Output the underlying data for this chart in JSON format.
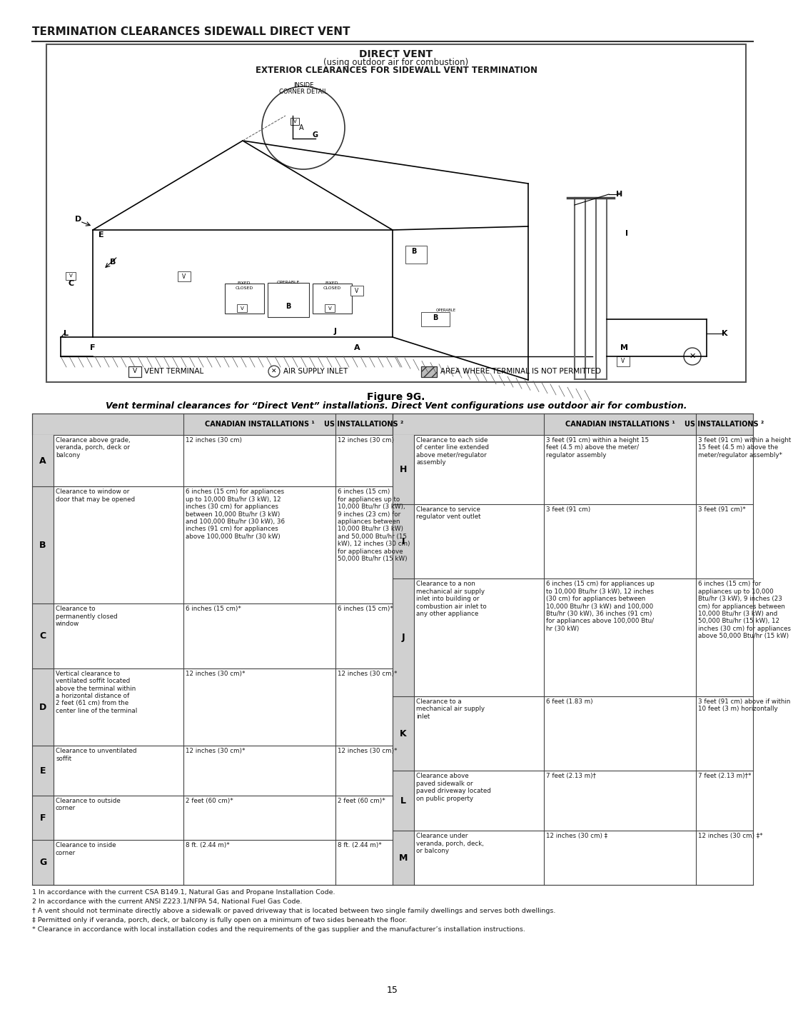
{
  "title": "TERMINATION CLEARANCES SIDEWALL DIRECT VENT",
  "figure_label": "Figure 9G.",
  "subtitle": "Vent terminal clearances for “Direct Vent” installations. Direct Vent configurations use outdoor air for combustion.",
  "diagram_title_line1": "DIRECT VENT",
  "diagram_title_line2": "(using outdoor air for combustion)",
  "diagram_title_line3": "EXTERIOR CLEARANCES FOR SIDEWALL VENT TERMINATION",
  "col_headers": [
    "CANADIAN INSTALLATIONS ¹",
    "US INSTALLATIONS ²",
    "CANADIAN INSTALLATIONS ¹",
    "US INSTALLATIONS ²"
  ],
  "rows_left": [
    {
      "letter": "A",
      "desc": "Clearance above grade,\nveranda, porch, deck or\nbalcony",
      "canada": "12 inches (30 cm)",
      "us": "12 inches (30 cm)"
    },
    {
      "letter": "B",
      "desc": "Clearance to window or\ndoor that may be opened",
      "canada": "6 inches (15 cm) for appliances\nup to 10,000 Btu/hr (3 kW), 12\ninches (30 cm) for appliances\nbetween 10,000 Btu/hr (3 kW)\nand 100,000 Btu/hr (30 kW), 36\ninches (91 cm) for appliances\nabove 100,000 Btu/hr (30 kW)",
      "us": "6 inches (15 cm)\nfor appliances up to\n10,000 Btu/hr (3 kW),\n9 inches (23 cm) for\nappliances between\n10,000 Btu/hr (3 kW)\nand 50,000 Btu/hr (15\nkW), 12 inches (30 cm)\nfor appliances above\n50,000 Btu/hr (15 kW)"
    },
    {
      "letter": "C",
      "desc": "Clearance to\npermanently closed\nwindow",
      "canada": "6 inches (15 cm)*",
      "us": "6 inches (15 cm)*"
    },
    {
      "letter": "D",
      "desc": "Vertical clearance to\nventilated soffit located\nabove the terminal within\na horizontal distance of\n2 feet (61 cm) from the\ncenter line of the terminal",
      "canada": "12 inches (30 cm)*",
      "us": "12 inches (30 cm)*"
    },
    {
      "letter": "E",
      "desc": "Clearance to unventilated\nsoffit",
      "canada": "12 inches (30 cm)*",
      "us": "12 inches (30 cm)*"
    },
    {
      "letter": "F",
      "desc": "Clearance to outside\ncorner",
      "canada": "2 feet (60 cm)*",
      "us": "2 feet (60 cm)*"
    },
    {
      "letter": "G",
      "desc": "Clearance to inside\ncorner",
      "canada": "8 ft. (2.44 m)*",
      "us": "8 ft. (2.44 m)*"
    }
  ],
  "rows_right": [
    {
      "letter": "H",
      "desc": "Clearance to each side\nof center line extended\nabove meter/regulator\nassembly",
      "canada": "3 feet (91 cm) within a height 15\nfeet (4.5 m) above the meter/\nregulator assembly",
      "us": "3 feet (91 cm) within a height\n15 feet (4.5 m) above the\nmeter/regulator assembly*"
    },
    {
      "letter": "I",
      "desc": "Clearance to service\nregulator vent outlet",
      "canada": "3 feet (91 cm)",
      "us": "3 feet (91 cm)*"
    },
    {
      "letter": "J",
      "desc": "Clearance to a non\nmechanical air supply\ninlet into building or\ncombustion air inlet to\nany other appliance",
      "canada": "6 inches (15 cm) for appliances up\nto 10,000 Btu/hr (3 kW), 12 inches\n(30 cm) for appliances between\n10,000 Btu/hr (3 kW) and 100,000\nBtu/hr (30 kW), 36 inches (91 cm)\nfor appliances above 100,000 Btu/\nhr (30 kW)",
      "us": "6 inches (15 cm) for\nappliances up to 10,000\nBtu/hr (3 kW), 9 inches (23\ncm) for appliances between\n10,000 Btu/hr (3 kW) and\n50,000 Btu/hr (15 kW), 12\ninches (30 cm) for appliances\nabove 50,000 Btu/hr (15 kW)"
    },
    {
      "letter": "K",
      "desc": "Clearance to a\nmechanical air supply\ninlet",
      "canada": "6 feet (1.83 m)",
      "us": "3 feet (91 cm) above if within\n10 feet (3 m) horizontally"
    },
    {
      "letter": "L",
      "desc": "Clearance above\npaved sidewalk or\npaved driveway located\non public property",
      "canada": "7 feet (2.13 m)†",
      "us": "7 feet (2.13 m)†*"
    },
    {
      "letter": "M",
      "desc": "Clearance under\nveranda, porch, deck,\nor balcony",
      "canada": "12 inches (30 cm) ‡",
      "us": "12 inches (30 cm) ‡*"
    }
  ],
  "footnotes": [
    "1 In accordance with the current CSA B149.1, Natural Gas and Propane Installation Code.",
    "2 In accordance with the current ANSI Z223.1/NFPA 54, National Fuel Gas Code.",
    "† A vent should not terminate directly above a sidewalk or paved driveway that is located between two single family dwellings and serves both dwellings.",
    "‡ Permitted only if veranda, porch, deck, or balcony is fully open on a minimum of two sides beneath the floor.",
    "* Clearance in accordance with local installation codes and the requirements of the gas supplier and the manufacturer’s installation instructions."
  ],
  "page_number": "15",
  "bg_color": "#ffffff",
  "border_color": "#333333",
  "header_bg": "#d0d0d0",
  "letter_bg": "#d0d0d0"
}
